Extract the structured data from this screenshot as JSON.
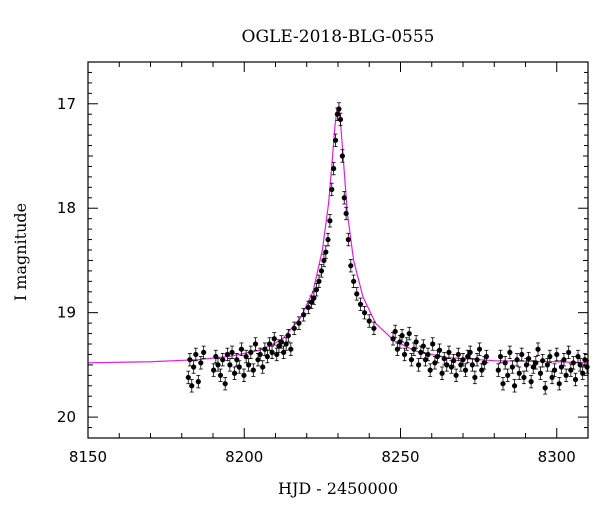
{
  "chart_data": {
    "type": "scatter",
    "title": "OGLE-2018-BLG-0555",
    "xlabel": "HJD - 2450000",
    "ylabel": "I magnitude",
    "xlim": [
      8150,
      8310
    ],
    "ylim": [
      20.2,
      16.6
    ],
    "y_inverted": true,
    "grid": false,
    "colors": {
      "data": "#000000",
      "model": "#e020e0"
    },
    "x_ticks": [
      8150,
      8200,
      8250,
      8300
    ],
    "x_tick_labels": [
      "8150",
      "8200",
      "8250",
      "8300"
    ],
    "y_ticks": [
      17,
      18,
      19,
      20
    ],
    "y_tick_labels": [
      "17",
      "18",
      "19",
      "20"
    ],
    "model": {
      "x": [
        8150,
        8170,
        8185,
        8195,
        8205,
        8212,
        8218,
        8222,
        8225,
        8227,
        8228,
        8229,
        8229.7,
        8230.3,
        8231,
        8232,
        8233,
        8235,
        8238,
        8242,
        8248,
        8255,
        8265,
        8280,
        8300,
        8310
      ],
      "y": [
        19.48,
        19.47,
        19.45,
        19.42,
        19.36,
        19.26,
        19.05,
        18.8,
        18.4,
        17.95,
        17.6,
        17.22,
        17.04,
        17.04,
        17.25,
        17.65,
        18.05,
        18.5,
        18.85,
        19.1,
        19.27,
        19.37,
        19.43,
        19.46,
        19.47,
        19.48
      ]
    },
    "series": [
      {
        "x": [
          8182.1,
          8182.6,
          8183.2,
          8183.8,
          8184.5,
          8185.3,
          8186.1,
          8187.0,
          8190.2,
          8190.9,
          8191.6,
          8192.4,
          8193.1,
          8193.9,
          8194.6,
          8195.4,
          8196.1,
          8196.9,
          8197.6,
          8198.4,
          8199.1,
          8199.9,
          8200.6,
          8201.4,
          8202.1,
          8202.9,
          8203.6,
          8204.4,
          8205.1,
          8205.9,
          8206.6,
          8207.4,
          8208.1,
          8208.9,
          8209.6,
          8210.4,
          8211.1,
          8211.9,
          8212.6,
          8213.4,
          8214.1,
          8214.9
        ],
        "y": [
          19.62,
          19.45,
          19.7,
          19.52,
          19.4,
          19.66,
          19.48,
          19.38,
          19.55,
          19.42,
          19.5,
          19.6,
          19.45,
          19.68,
          19.4,
          19.5,
          19.38,
          19.58,
          19.45,
          19.52,
          19.35,
          19.6,
          19.42,
          19.5,
          19.38,
          19.55,
          19.3,
          19.45,
          19.4,
          19.52,
          19.35,
          19.42,
          19.3,
          19.38,
          19.25,
          19.4,
          19.32,
          19.28,
          19.38,
          19.3,
          19.22,
          19.35
        ]
      },
      {
        "x": [
          8216.0,
          8217.5,
          8219.0,
          8220.5,
          8221.5,
          8222.3,
          8223.1,
          8223.9,
          8224.7,
          8225.5,
          8226.1,
          8226.8,
          8227.4,
          8228.0,
          8228.6,
          8229.2,
          8229.8,
          8230.3,
          8230.8,
          8231.4,
          8232.0,
          8232.6,
          8233.3,
          8234.1,
          8235.0,
          8236.0,
          8237.2,
          8238.5,
          8240.0,
          8241.5
        ],
        "y": [
          19.15,
          19.1,
          19.02,
          18.95,
          18.9,
          18.86,
          18.78,
          18.7,
          18.6,
          18.5,
          18.42,
          18.3,
          18.12,
          17.82,
          17.62,
          17.35,
          17.1,
          17.05,
          17.15,
          17.5,
          17.9,
          18.05,
          18.3,
          18.55,
          18.7,
          18.82,
          18.92,
          19.0,
          19.08,
          19.15
        ]
      },
      {
        "x": [
          8247.6,
          8248.3,
          8249.0,
          8249.8,
          8250.5,
          8251.3,
          8252.0,
          8252.8,
          8253.5,
          8254.3,
          8255.0,
          8255.8,
          8256.5,
          8257.3,
          8258.0,
          8258.8,
          8259.5,
          8260.3,
          8261.0,
          8261.8,
          8262.5,
          8263.3,
          8264.0,
          8264.8,
          8265.5,
          8266.3,
          8267.0,
          8267.8,
          8268.5,
          8269.3,
          8270.0,
          8270.8,
          8271.5,
          8272.3,
          8273.0,
          8273.8,
          8274.5,
          8275.3,
          8276.0,
          8276.8,
          8277.5
        ],
        "y": [
          19.25,
          19.18,
          19.35,
          19.28,
          19.22,
          19.4,
          19.3,
          19.2,
          19.45,
          19.35,
          19.28,
          19.5,
          19.38,
          19.32,
          19.45,
          19.4,
          19.55,
          19.3,
          19.48,
          19.42,
          19.36,
          19.58,
          19.44,
          19.5,
          19.38,
          19.52,
          19.46,
          19.6,
          19.4,
          19.5,
          19.45,
          19.55,
          19.42,
          19.38,
          19.5,
          19.62,
          19.45,
          19.35,
          19.55,
          19.48,
          19.42
        ]
      },
      {
        "x": [
          8281.3,
          8282.0,
          8282.8,
          8283.5,
          8284.3,
          8285.0,
          8285.8,
          8286.5,
          8287.3,
          8288.0,
          8288.8,
          8289.5,
          8290.3,
          8291.0,
          8291.8,
          8292.5,
          8293.3,
          8294.0,
          8294.8,
          8295.5,
          8296.3,
          8297.0,
          8297.8,
          8298.5,
          8299.3,
          8300.0,
          8300.8,
          8301.5,
          8302.3,
          8303.0,
          8303.8,
          8304.5,
          8305.3,
          8306.0,
          8306.8,
          8307.5,
          8308.3,
          8309.0,
          8309.7
        ],
        "y": [
          19.55,
          19.42,
          19.68,
          19.48,
          19.6,
          19.38,
          19.52,
          19.7,
          19.45,
          19.58,
          19.4,
          19.62,
          19.5,
          19.44,
          19.66,
          19.52,
          19.48,
          19.35,
          19.58,
          19.46,
          19.72,
          19.5,
          19.42,
          19.62,
          19.55,
          19.4,
          19.68,
          19.52,
          19.45,
          19.6,
          19.38,
          19.55,
          19.48,
          19.64,
          19.42,
          19.5,
          19.58,
          19.45,
          19.52
        ]
      }
    ],
    "error_bar_mag": 0.06
  }
}
